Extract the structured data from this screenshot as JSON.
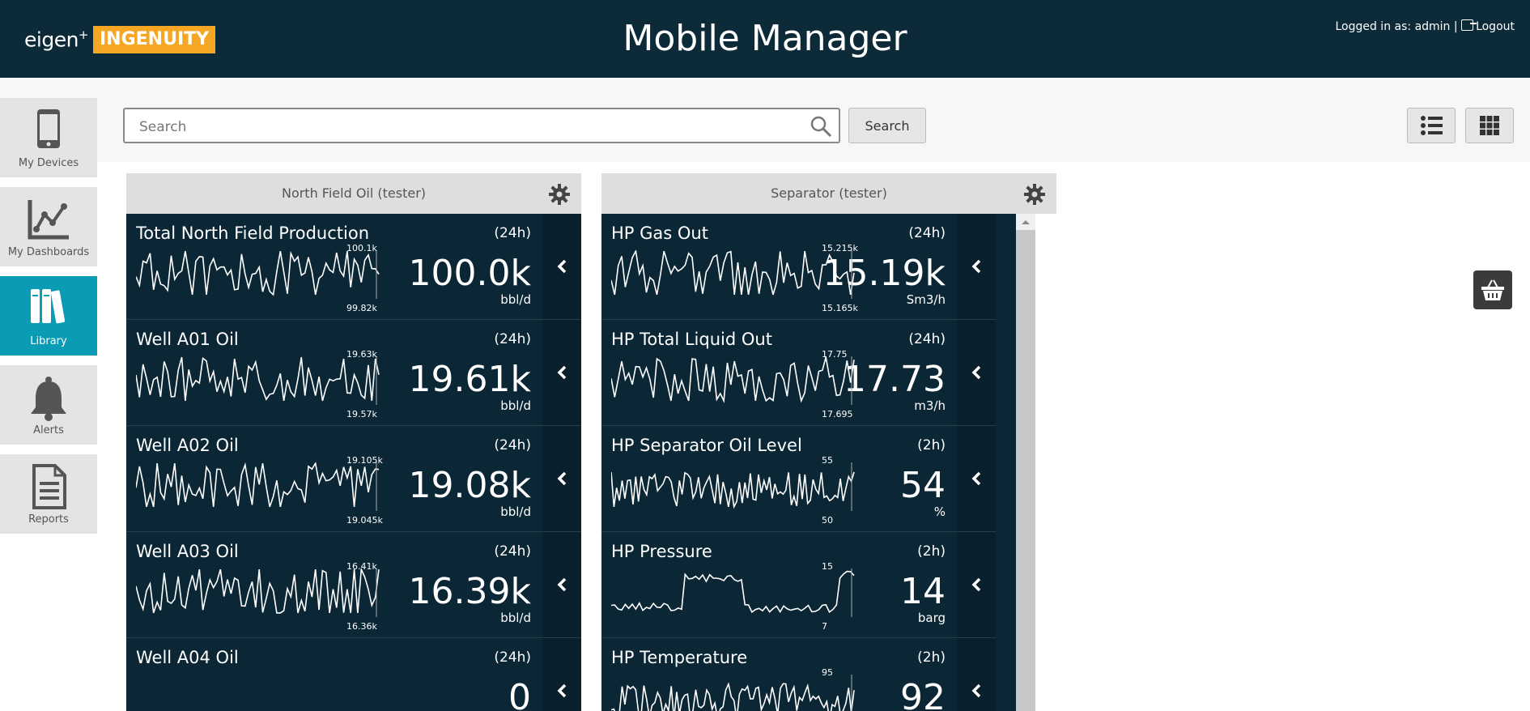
{
  "header": {
    "logo_eigen": "eigen",
    "logo_plus": "+",
    "logo_brand": "INGENUITY",
    "title": "Mobile Manager",
    "login_text": "Logged in as: admin |",
    "logout_label": "Logout"
  },
  "sidebar": {
    "items": [
      {
        "label": "My Devices",
        "icon": "phone-icon",
        "active": false
      },
      {
        "label": "My Dashboards",
        "icon": "chart-icon",
        "active": false
      },
      {
        "label": "Library",
        "icon": "books-icon",
        "active": true
      },
      {
        "label": "Alerts",
        "icon": "bell-icon",
        "active": false
      },
      {
        "label": "Reports",
        "icon": "document-icon",
        "active": false
      }
    ]
  },
  "search": {
    "placeholder": "Search",
    "value": "",
    "button_label": "Search"
  },
  "view_toggle": {
    "list_icon": "list-view-icon",
    "grid_icon": "grid-view-icon"
  },
  "basket_icon": "basket-icon",
  "panels": [
    {
      "title": "North Field Oil (tester)",
      "tiles": [
        {
          "title": "Total North Field Production",
          "period": "(24h)",
          "value": "100.0k",
          "unit": "bbl/d",
          "max": "100.1k",
          "min": "99.82k",
          "trend": "oil"
        },
        {
          "title": "Well A01 Oil",
          "period": "(24h)",
          "value": "19.61k",
          "unit": "bbl/d",
          "max": "19.63k",
          "min": "19.57k",
          "trend": "oil"
        },
        {
          "title": "Well A02 Oil",
          "period": "(24h)",
          "value": "19.08k",
          "unit": "bbl/d",
          "max": "19.105k",
          "min": "19.045k",
          "trend": "oil"
        },
        {
          "title": "Well A03 Oil",
          "period": "(24h)",
          "value": "16.39k",
          "unit": "bbl/d",
          "max": "16.41k",
          "min": "16.36k",
          "trend": "oil"
        },
        {
          "title": "Well A04 Oil",
          "period": "(24h)",
          "value": "0",
          "unit": "",
          "max": "",
          "min": "",
          "trend": "none"
        }
      ]
    },
    {
      "title": "Separator (tester)",
      "tiles": [
        {
          "title": "HP Gas Out",
          "period": "(24h)",
          "value": "15.19k",
          "unit": "Sm3/h",
          "max": "15.215k",
          "min": "15.165k",
          "trend": "oil"
        },
        {
          "title": "HP Total Liquid Out",
          "period": "(24h)",
          "value": "17.73",
          "unit": "m3/h",
          "max": "17.75",
          "min": "17.695",
          "trend": "oil"
        },
        {
          "title": "HP Separator Oil Level",
          "period": "(2h)",
          "value": "54",
          "unit": "%",
          "max": "55",
          "min": "50",
          "trend": "noisy"
        },
        {
          "title": "HP Pressure",
          "period": "(2h)",
          "value": "14",
          "unit": "barg",
          "max": "15",
          "min": "7",
          "trend": "step"
        },
        {
          "title": "HP Temperature",
          "period": "(2h)",
          "value": "92",
          "unit": "",
          "max": "95",
          "min": "",
          "trend": "noisy"
        }
      ]
    }
  ],
  "colors": {
    "header_bg": "#0d2a38",
    "tile_bg": "#0b2634",
    "active_nav": "#0a9bb5",
    "brand_orange": "#f5a623"
  }
}
